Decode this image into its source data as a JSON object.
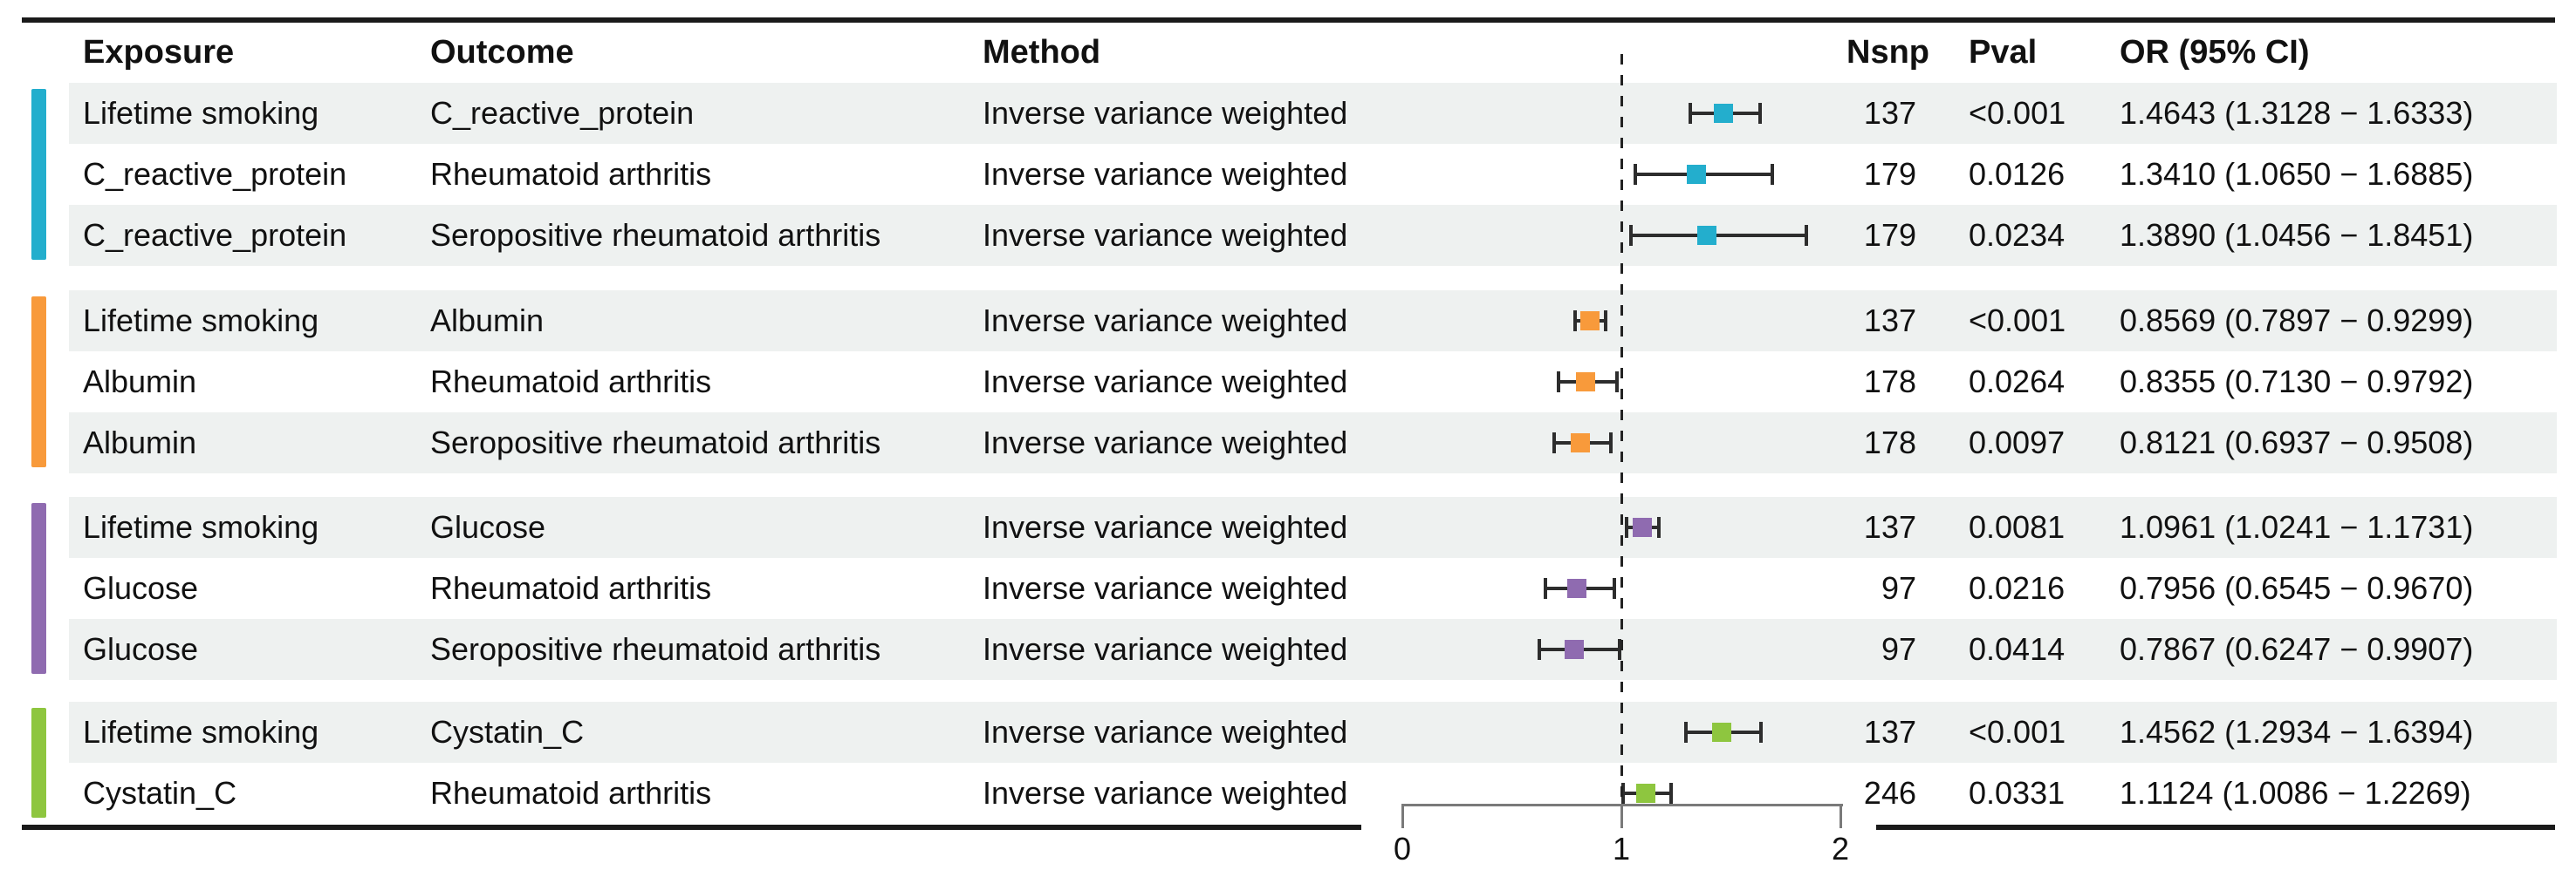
{
  "chart_data": {
    "type": "table",
    "subtype": "forest-plot",
    "title": "",
    "columns": [
      "Exposure",
      "Outcome",
      "Method",
      "Nsnp",
      "Pval",
      "OR (95% CI)"
    ],
    "axis": {
      "xlim": [
        0,
        2
      ],
      "tick_values": [
        0,
        1,
        2
      ],
      "tick_labels": [
        "0",
        "1",
        "2"
      ],
      "reference_line": 1,
      "grid": false
    },
    "colors": {
      "stripe_bg": "#eef1f0",
      "rule": "#1a1a1a",
      "axis": "#7a7a7a",
      "error_bar": "#2d2d2d",
      "ref_line": "#222222",
      "group_teal": "#23aecd",
      "group_orange": "#f89a3b",
      "group_purple": "#8f6bb0",
      "group_green": "#8ec63f"
    },
    "groups": [
      {
        "name": "C_reactive_protein",
        "color": "#23aecd",
        "rows": [
          {
            "exposure": "Lifetime smoking",
            "outcome": "C_reactive_protein",
            "method": "Inverse variance weighted",
            "nsnp": "137",
            "pval": "<0.001",
            "or": 1.4643,
            "ci_low": 1.3128,
            "ci_high": 1.6333,
            "or_text": "1.4643 (1.3128 − 1.6333)"
          },
          {
            "exposure": "C_reactive_protein",
            "outcome": "Rheumatoid arthritis",
            "method": "Inverse variance weighted",
            "nsnp": "179",
            "pval": "0.0126",
            "or": 1.341,
            "ci_low": 1.065,
            "ci_high": 1.6885,
            "or_text": "1.3410 (1.0650 − 1.6885)"
          },
          {
            "exposure": "C_reactive_protein",
            "outcome": "Seropositive rheumatoid arthritis",
            "method": "Inverse variance weighted",
            "nsnp": "179",
            "pval": "0.0234",
            "or": 1.389,
            "ci_low": 1.0456,
            "ci_high": 1.8451,
            "or_text": "1.3890 (1.0456 − 1.8451)"
          }
        ]
      },
      {
        "name": "Albumin",
        "color": "#f89a3b",
        "rows": [
          {
            "exposure": "Lifetime smoking",
            "outcome": "Albumin",
            "method": "Inverse variance weighted",
            "nsnp": "137",
            "pval": "<0.001",
            "or": 0.8569,
            "ci_low": 0.7897,
            "ci_high": 0.9299,
            "or_text": "0.8569 (0.7897 − 0.9299)"
          },
          {
            "exposure": "Albumin",
            "outcome": "Rheumatoid arthritis",
            "method": "Inverse variance weighted",
            "nsnp": "178",
            "pval": "0.0264",
            "or": 0.8355,
            "ci_low": 0.713,
            "ci_high": 0.9792,
            "or_text": "0.8355 (0.7130 − 0.9792)"
          },
          {
            "exposure": "Albumin",
            "outcome": "Seropositive rheumatoid arthritis",
            "method": "Inverse variance weighted",
            "nsnp": "178",
            "pval": "0.0097",
            "or": 0.8121,
            "ci_low": 0.6937,
            "ci_high": 0.9508,
            "or_text": "0.8121 (0.6937 − 0.9508)"
          }
        ]
      },
      {
        "name": "Glucose",
        "color": "#8f6bb0",
        "rows": [
          {
            "exposure": "Lifetime smoking",
            "outcome": "Glucose",
            "method": "Inverse variance weighted",
            "nsnp": "137",
            "pval": "0.0081",
            "or": 1.0961,
            "ci_low": 1.0241,
            "ci_high": 1.1731,
            "or_text": "1.0961 (1.0241 − 1.1731)"
          },
          {
            "exposure": "Glucose",
            "outcome": "Rheumatoid arthritis",
            "method": "Inverse variance weighted",
            "nsnp": "97",
            "pval": "0.0216",
            "or": 0.7956,
            "ci_low": 0.6545,
            "ci_high": 0.967,
            "or_text": "0.7956 (0.6545 − 0.9670)"
          },
          {
            "exposure": "Glucose",
            "outcome": "Seropositive rheumatoid arthritis",
            "method": "Inverse variance weighted",
            "nsnp": "97",
            "pval": "0.0414",
            "or": 0.7867,
            "ci_low": 0.6247,
            "ci_high": 0.9907,
            "or_text": "0.7867 (0.6247 − 0.9907)"
          }
        ]
      },
      {
        "name": "Cystatin_C",
        "color": "#8ec63f",
        "rows": [
          {
            "exposure": "Lifetime smoking",
            "outcome": "Cystatin_C",
            "method": "Inverse variance weighted",
            "nsnp": "137",
            "pval": "<0.001",
            "or": 1.4562,
            "ci_low": 1.2934,
            "ci_high": 1.6394,
            "or_text": "1.4562 (1.2934 − 1.6394)"
          },
          {
            "exposure": "Cystatin_C",
            "outcome": "Rheumatoid arthritis",
            "method": "Inverse variance weighted",
            "nsnp": "246",
            "pval": "0.0331",
            "or": 1.1124,
            "ci_low": 1.0086,
            "ci_high": 1.2269,
            "or_text": "1.1124 (1.0086 − 1.2269)"
          }
        ]
      }
    ]
  }
}
